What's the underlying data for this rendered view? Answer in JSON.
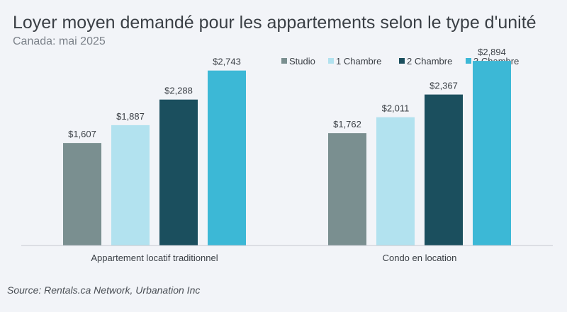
{
  "title": "Loyer moyen demandé pour les appartements selon le type d'unité",
  "subtitle": "Canada: mai 2025",
  "source": "Source: Rentals.ca Network, Urbanation Inc",
  "chart_data": {
    "type": "bar",
    "categories": [
      "Appartement locatif traditionnel",
      "Condo en location"
    ],
    "series": [
      {
        "name": "Studio",
        "color": "#7a8f90",
        "values": [
          1607,
          1762
        ],
        "labels": [
          "$1,607",
          "$1,762"
        ]
      },
      {
        "name": "1 Chambre",
        "color": "#b2e2ef",
        "values": [
          1887,
          2011
        ],
        "labels": [
          "$1,887",
          "$2,011"
        ]
      },
      {
        "name": "2 Chambre",
        "color": "#1b4f5e",
        "values": [
          2288,
          2367
        ],
        "labels": [
          "$2,288",
          "$2,367"
        ]
      },
      {
        "name": "3 Chambre",
        "color": "#3cb8d6",
        "values": [
          2743,
          2894
        ],
        "labels": [
          "$2,743",
          "$2,894"
        ]
      }
    ],
    "ylim": [
      0,
      3250
    ],
    "grid": false,
    "legend": "top-right",
    "data_labels": true
  }
}
